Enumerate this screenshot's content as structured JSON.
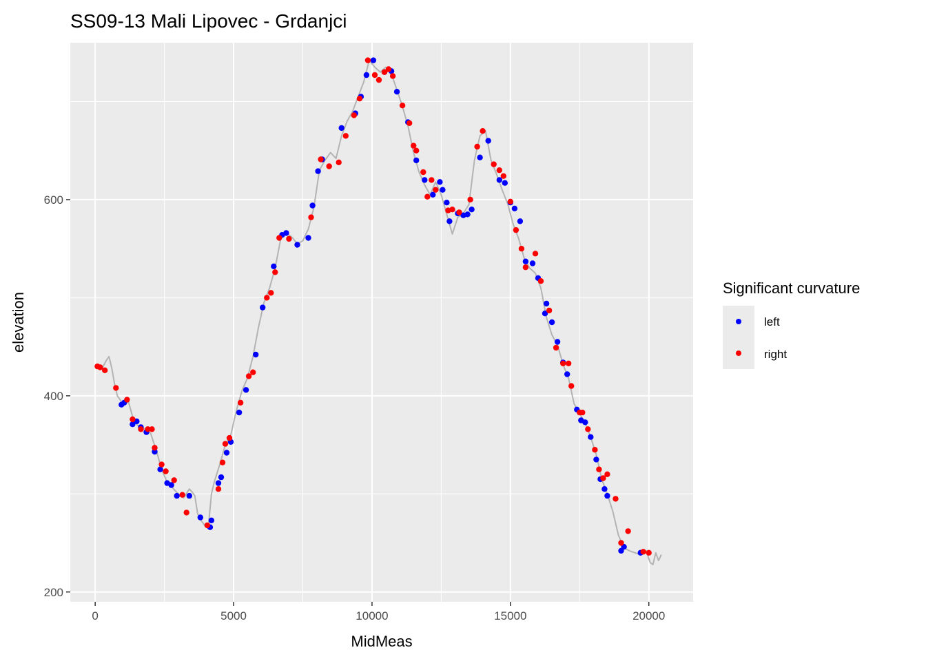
{
  "chart_data": {
    "type": "scatter",
    "title": "SS09-13 Mali Lipovec - Grdanjci",
    "xlabel": "MidMeas",
    "ylabel": "elevation",
    "xlim": [
      -900,
      21600
    ],
    "ylim": [
      190,
      760
    ],
    "x_ticks": [
      0,
      5000,
      10000,
      15000,
      20000
    ],
    "y_ticks": [
      200,
      400,
      600
    ],
    "grid": true,
    "legend": {
      "title": "Significant curvature",
      "position": "right"
    },
    "colors": {
      "left": "#0000ff",
      "right": "#ff0000",
      "profile": "#b3b3b3",
      "panel": "#ebebeb",
      "grid": "#ffffff"
    },
    "profile_line": {
      "x": [
        0,
        250,
        400,
        500,
        600,
        700,
        800,
        1000,
        1200,
        1400,
        1600,
        1800,
        2000,
        2200,
        2400,
        2600,
        2800,
        3000,
        3200,
        3400,
        3500,
        3600,
        3700,
        3800,
        3900,
        4000,
        4100,
        4200,
        4300,
        4500,
        4700,
        4900,
        5100,
        5300,
        5500,
        5700,
        5900,
        6100,
        6300,
        6500,
        6700,
        6900,
        7100,
        7300,
        7500,
        7700,
        7900,
        8100,
        8300,
        8500,
        8700,
        8900,
        9100,
        9300,
        9500,
        9700,
        9900,
        10100,
        10300,
        10500,
        10700,
        10900,
        11100,
        11300,
        11500,
        11700,
        11900,
        12100,
        12300,
        12500,
        12700,
        12900,
        13100,
        13300,
        13500,
        13700,
        13900,
        14100,
        14300,
        14500,
        14700,
        14900,
        15100,
        15300,
        15500,
        15700,
        15900,
        16100,
        16300,
        16500,
        16700,
        16900,
        17100,
        17300,
        17500,
        17700,
        17900,
        18100,
        18300,
        18500,
        18700,
        18900,
        19100,
        19300,
        19500,
        19700,
        19900,
        20050,
        20150,
        20250,
        20350,
        20450
      ],
      "y": [
        430,
        428,
        436,
        440,
        428,
        412,
        400,
        392,
        394,
        374,
        368,
        366,
        362,
        345,
        325,
        312,
        306,
        300,
        296,
        305,
        302,
        298,
        280,
        274,
        270,
        266,
        270,
        300,
        312,
        330,
        350,
        360,
        385,
        405,
        418,
        440,
        470,
        495,
        510,
        530,
        560,
        566,
        562,
        555,
        558,
        570,
        592,
        630,
        640,
        648,
        642,
        665,
        680,
        690,
        705,
        720,
        742,
        735,
        730,
        735,
        728,
        712,
        695,
        675,
        648,
        628,
        615,
        605,
        618,
        605,
        585,
        565,
        582,
        586,
        595,
        640,
        665,
        670,
        640,
        626,
        610,
        596,
        575,
        560,
        540,
        530,
        525,
        510,
        480,
        462,
        452,
        432,
        418,
        392,
        382,
        372,
        358,
        340,
        315,
        300,
        282,
        258,
        245,
        242,
        240,
        238,
        242,
        230,
        228,
        240,
        232,
        238
      ]
    },
    "series": [
      {
        "name": "left",
        "x": [
          950,
          1050,
          1350,
          1500,
          1650,
          1850,
          2150,
          2350,
          2600,
          2750,
          2950,
          3400,
          3800,
          4150,
          4200,
          4450,
          4550,
          4750,
          4900,
          5200,
          5450,
          5800,
          6050,
          6450,
          6750,
          6900,
          7300,
          7700,
          7850,
          8050,
          8200,
          8900,
          9400,
          9600,
          9800,
          10050,
          10450,
          10700,
          10900,
          11300,
          11600,
          11900,
          12200,
          12450,
          12550,
          12700,
          12800,
          13100,
          13300,
          13450,
          13600,
          13900,
          14200,
          14600,
          14800,
          15000,
          15150,
          15350,
          15550,
          15800,
          16000,
          16250,
          16300,
          16500,
          16700,
          16900,
          17050,
          17400,
          17550,
          17700,
          17900,
          18100,
          18250,
          18400,
          18500,
          19000,
          19100,
          19700
        ],
        "y": [
          391,
          393,
          371,
          374,
          368,
          363,
          343,
          325,
          311,
          309,
          298,
          298,
          276,
          266,
          273,
          311,
          317,
          342,
          353,
          383,
          406,
          442,
          490,
          532,
          564,
          566,
          554,
          561,
          594,
          629,
          641,
          673,
          688,
          705,
          727,
          742,
          730,
          731,
          710,
          679,
          640,
          620,
          605,
          618,
          610,
          597,
          578,
          586,
          584,
          585,
          590,
          643,
          660,
          620,
          617,
          597,
          591,
          578,
          537,
          535,
          520,
          484,
          494,
          475,
          455,
          434,
          422,
          386,
          375,
          373,
          358,
          335,
          315,
          305,
          298,
          242,
          246,
          240
        ]
      },
      {
        "name": "right",
        "x": [
          80,
          180,
          350,
          750,
          1150,
          1350,
          1650,
          1900,
          2050,
          2150,
          2400,
          2550,
          2850,
          3150,
          3300,
          4050,
          4450,
          4600,
          4700,
          4850,
          5250,
          5550,
          5700,
          6200,
          6350,
          6500,
          6650,
          7000,
          7800,
          8150,
          8450,
          8800,
          9050,
          9350,
          9550,
          9850,
          10100,
          10250,
          10450,
          10600,
          10750,
          11100,
          11350,
          11500,
          11600,
          11850,
          12000,
          12150,
          12300,
          12750,
          12900,
          13150,
          13550,
          13800,
          14000,
          14400,
          14600,
          14750,
          15000,
          15200,
          15400,
          15550,
          15900,
          16100,
          16400,
          16650,
          16900,
          17100,
          17200,
          17500,
          17600,
          17800,
          18050,
          18200,
          18350,
          18500,
          18800,
          19000,
          19250,
          19800,
          20000
        ],
        "y": [
          430,
          429,
          426,
          408,
          396,
          376,
          366,
          366,
          366,
          347,
          330,
          323,
          314,
          299,
          281,
          268,
          305,
          332,
          351,
          357,
          393,
          420,
          424,
          500,
          505,
          526,
          561,
          560,
          582,
          641,
          634,
          638,
          665,
          686,
          703,
          742,
          727,
          722,
          730,
          733,
          726,
          696,
          678,
          655,
          650,
          628,
          603,
          620,
          610,
          589,
          590,
          587,
          600,
          654,
          670,
          636,
          630,
          624,
          598,
          569,
          550,
          531,
          545,
          517,
          487,
          449,
          433,
          433,
          410,
          383,
          383,
          366,
          345,
          325,
          316,
          320,
          295,
          250,
          262,
          241,
          240
        ]
      }
    ]
  }
}
